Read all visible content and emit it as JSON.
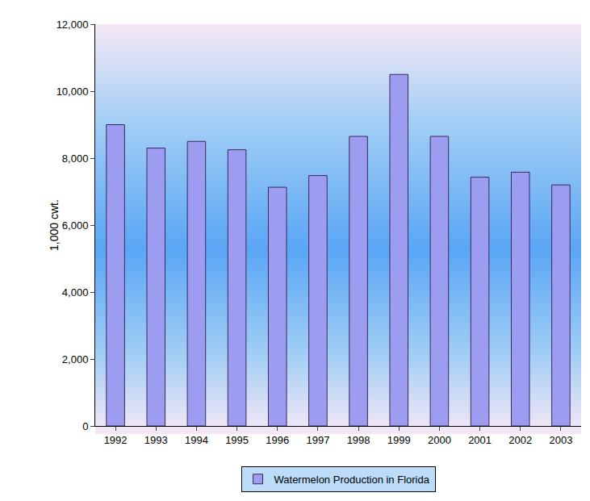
{
  "chart_data": {
    "type": "bar",
    "y_label": "1,000 cwt.",
    "categories": [
      "1992",
      "1993",
      "1994",
      "1995",
      "1996",
      "1997",
      "1998",
      "1999",
      "2000",
      "2001",
      "2002",
      "2003"
    ],
    "series": [
      {
        "name": "Watermelon Production in Florida",
        "color": "#9c9cf0",
        "values": [
          9000,
          8300,
          8500,
          8250,
          7130,
          7480,
          8650,
          10500,
          8650,
          7430,
          7580,
          7200
        ]
      }
    ],
    "ylim": [
      0,
      12000
    ],
    "yticks": [
      0,
      {
        "value": 2000,
        "label": "2,000"
      },
      {
        "value": 4000,
        "label": "4,000"
      },
      {
        "value": 6000,
        "label": "6,000"
      },
      {
        "value": 8000,
        "label": "8,000"
      },
      {
        "value": 10000,
        "label": "10,000"
      },
      {
        "value": 12000,
        "label": "12,000"
      }
    ],
    "grid": false,
    "legend": "bottom"
  }
}
